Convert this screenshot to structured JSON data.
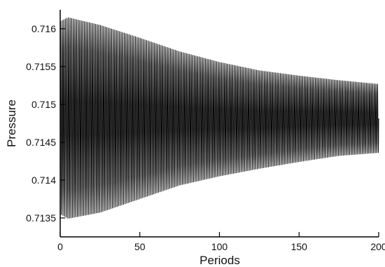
{
  "chart_data": {
    "type": "line",
    "title": "",
    "xlabel": "Periods",
    "ylabel": "Pressure",
    "xlim": [
      0,
      200
    ],
    "ylim": [
      0.71325,
      0.71625
    ],
    "x_ticks": [
      0,
      50,
      100,
      150,
      200
    ],
    "x_tick_labels": [
      "0",
      "50",
      "100",
      "150",
      "200"
    ],
    "y_ticks": [
      0.7135,
      0.714,
      0.7145,
      0.715,
      0.7155,
      0.716
    ],
    "y_tick_labels": [
      "0.7135",
      "0.714",
      "0.7145",
      "0.715",
      "0.7155",
      "0.716"
    ],
    "grid": false,
    "series": [
      {
        "line_color": "#000000",
        "oscillation_period": 1,
        "mean": 0.71482,
        "envelope_upper": {
          "x": [
            0,
            5,
            25,
            50,
            75,
            100,
            125,
            150,
            175,
            200
          ],
          "y": [
            0.7161,
            0.71615,
            0.71605,
            0.71588,
            0.7157,
            0.71556,
            0.71545,
            0.71538,
            0.71532,
            0.71527
          ]
        },
        "envelope_lower": {
          "x": [
            0,
            5,
            25,
            50,
            75,
            100,
            125,
            150,
            175,
            200
          ],
          "y": [
            0.71355,
            0.71349,
            0.71357,
            0.71375,
            0.71393,
            0.71405,
            0.71415,
            0.71424,
            0.71432,
            0.71436
          ]
        }
      }
    ]
  }
}
